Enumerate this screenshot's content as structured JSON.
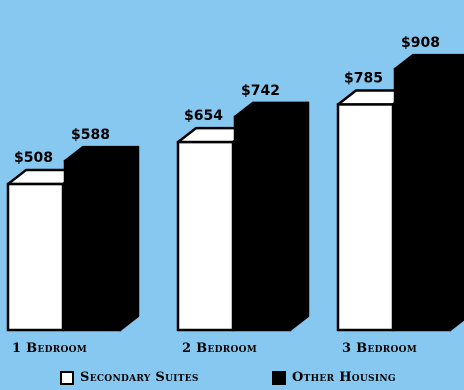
{
  "chart_data": {
    "type": "bar",
    "categories": [
      "1 Bedroom",
      "2 Bedroom",
      "3 Bedroom"
    ],
    "series": [
      {
        "name": "Secondary Suites",
        "values": [
          508,
          654,
          785
        ],
        "labels": [
          "$508",
          "$654",
          "$785"
        ],
        "color": "#ffffff"
      },
      {
        "name": "Other Housing",
        "values": [
          588,
          742,
          908
        ],
        "labels": [
          "$588",
          "$742",
          "$908"
        ],
        "color": "#000000"
      }
    ],
    "title": "",
    "xlabel": "",
    "ylabel": "",
    "ylim": [
      0,
      1100
    ],
    "grid": false,
    "legend_position": "bottom"
  },
  "colors": {
    "background": "#87c8f0",
    "outline": "#000000"
  }
}
